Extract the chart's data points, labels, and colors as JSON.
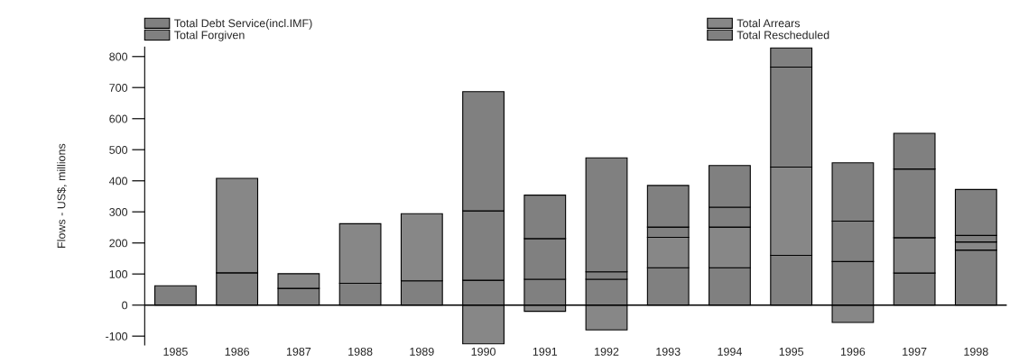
{
  "chart_data": {
    "type": "bar",
    "stacked": true,
    "ylabel": "Flows - US$, millions",
    "categories": [
      "1985",
      "1986",
      "1987",
      "1988",
      "1989",
      "1990",
      "1991",
      "1992",
      "1993",
      "1994",
      "1995",
      "1996",
      "1997",
      "1998"
    ],
    "series": [
      {
        "name": "Total Debt Service(incl.IMF)",
        "color": "#808080",
        "values": [
          62,
          104,
          54,
          70,
          78,
          80,
          83,
          83,
          120,
          120,
          160,
          140,
          103,
          177
        ]
      },
      {
        "name": "Total Arrears",
        "color": "#878787",
        "values": [
          null,
          304,
          47,
          192,
          216,
          -125,
          -20,
          -80,
          98,
          131,
          284,
          -56,
          114,
          26
        ]
      },
      {
        "name": "Total Forgiven",
        "color": "#808080",
        "values": [
          null,
          null,
          null,
          null,
          null,
          223,
          131,
          24,
          33,
          64,
          322,
          130,
          221,
          21
        ]
      },
      {
        "name": "Total Rescheduled",
        "color": "#808080",
        "values": [
          null,
          null,
          null,
          null,
          null,
          384,
          140,
          367,
          134,
          134,
          62,
          188,
          115,
          148
        ]
      }
    ],
    "ylim": [
      -128,
      830
    ],
    "yticks": [
      -100,
      0,
      100,
      200,
      300,
      400,
      500,
      600,
      700,
      800
    ],
    "ref_lines": [
      {
        "axis": "y",
        "value": 0,
        "color": "#000000"
      }
    ],
    "legend": "top",
    "grid": false
  }
}
